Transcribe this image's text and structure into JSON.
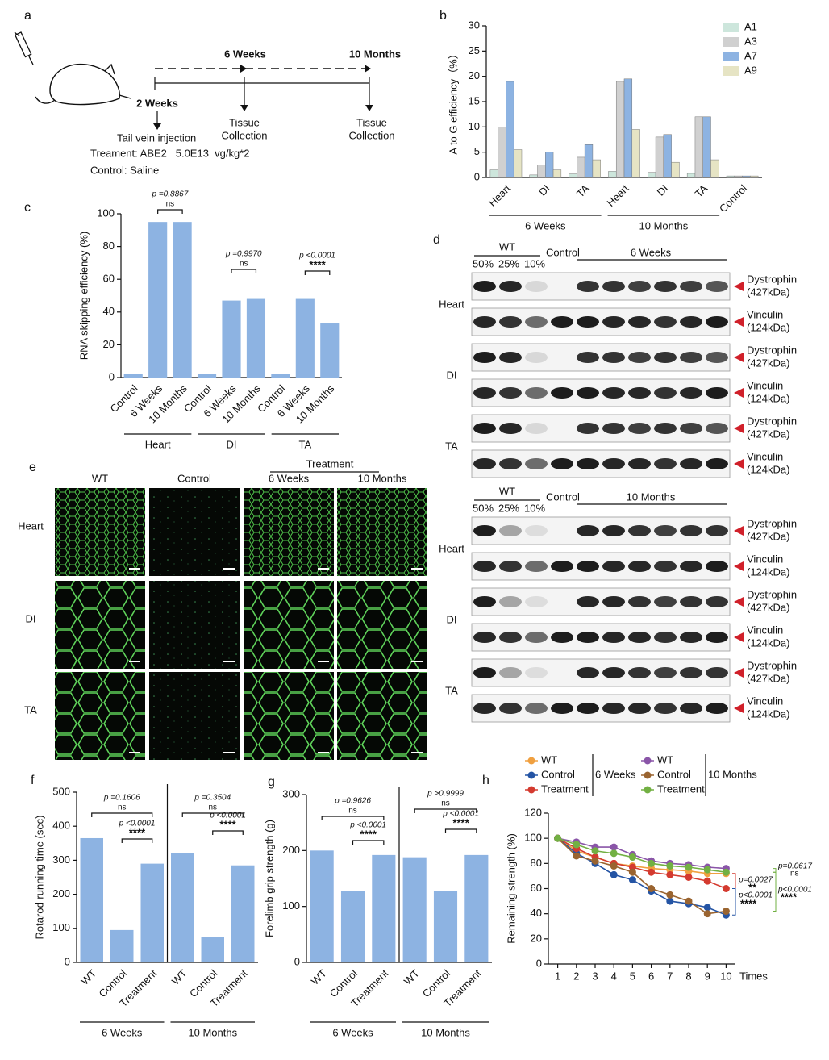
{
  "panel_a": {
    "label": "a",
    "mid_time": "6 Weeks",
    "end_time": "10 Months",
    "start_time": "2 Weeks",
    "injection": "Tail vein injection",
    "treatment": "Treament: ABE2   5.0E13  vg/kg*2",
    "control": "Control: Saline",
    "collection_mid": [
      "Tissue",
      "Collection"
    ],
    "collection_end": [
      "Tissue",
      "Collection"
    ]
  },
  "chart_data": [
    {
      "label": "b",
      "type": "bar",
      "ylabel": "A to G efficiency（%）",
      "categories": [
        "Heart",
        "DI",
        "TA",
        "Heart",
        "DI",
        "TA",
        "Control"
      ],
      "groups": [
        "6 Weeks",
        "10 Months"
      ],
      "series": [
        {
          "name": "A1",
          "color": "#cde6dc",
          "values": [
            1.5,
            0.5,
            0.7,
            1.2,
            1.0,
            0.8,
            0.3
          ]
        },
        {
          "name": "A3",
          "color": "#d0d0d0",
          "values": [
            10,
            2.5,
            4,
            19,
            8,
            12,
            0.3
          ]
        },
        {
          "name": "A7",
          "color": "#8db3e2",
          "values": [
            19,
            5,
            6.5,
            19.5,
            8.5,
            12,
            0.3
          ]
        },
        {
          "name": "A9",
          "color": "#e6e4c4",
          "values": [
            5.5,
            1.5,
            3.5,
            9.5,
            3,
            3.5,
            0.3
          ]
        }
      ],
      "ylim": [
        0,
        30
      ],
      "yticks": [
        0,
        5,
        10,
        15,
        20,
        25,
        30
      ],
      "legend": "top-right"
    },
    {
      "label": "c",
      "type": "bar",
      "ylabel": "RNA skipping efficiency (%)",
      "categories": [
        "Control",
        "6 Weeks",
        "10 Months",
        "Control",
        "6 Weeks",
        "10 Months",
        "Control",
        "6 Weeks",
        "10 Months"
      ],
      "groups": [
        "Heart",
        "DI",
        "TA"
      ],
      "values": [
        2,
        95,
        95,
        2,
        47,
        48,
        2,
        48,
        33
      ],
      "color": "#8db3e2",
      "ylim": [
        0,
        100
      ],
      "yticks": [
        0,
        20,
        40,
        60,
        80,
        100
      ],
      "annotations": [
        {
          "p": "p =0.8867",
          "sig": "ns"
        },
        {
          "p": "p =0.9970",
          "sig": "ns"
        },
        {
          "p": "p <0.0001",
          "sig": "****"
        }
      ]
    },
    {
      "label": "f",
      "type": "bar",
      "ylabel": "Rotarod running time (sec)",
      "categories": [
        "WT",
        "Control",
        "Treatment",
        "WT",
        "Control",
        "Treatment"
      ],
      "groups": [
        "6 Weeks",
        "10 Months"
      ],
      "values": [
        365,
        95,
        290,
        320,
        75,
        285
      ],
      "color": "#8db3e2",
      "ylim": [
        0,
        500
      ],
      "yticks": [
        0,
        100,
        200,
        300,
        400,
        500
      ],
      "annotations": [
        {
          "p": "p =0.1606",
          "sig": "ns"
        },
        {
          "p": "p <0.0001",
          "sig": "****"
        },
        {
          "p": "p =0.3504",
          "sig": "ns"
        },
        {
          "p": "p <0.0001",
          "sig": "****"
        }
      ]
    },
    {
      "label": "g",
      "type": "bar",
      "ylabel": "Forelimb grip strength (g)",
      "categories": [
        "WT",
        "Control",
        "Treatment",
        "WT",
        "Control",
        "Treatment"
      ],
      "groups": [
        "6 Weeks",
        "10 Months"
      ],
      "values": [
        200,
        128,
        192,
        188,
        128,
        192
      ],
      "color": "#8db3e2",
      "ylim": [
        0,
        300
      ],
      "yticks": [
        0,
        100,
        200,
        300
      ],
      "annotations": [
        {
          "p": "p =0.9626",
          "sig": "ns"
        },
        {
          "p": "p <0.0001",
          "sig": "****"
        },
        {
          "p": "p >0.9999",
          "sig": "ns"
        },
        {
          "p": "p <0.0001",
          "sig": "****"
        }
      ]
    },
    {
      "label": "h",
      "type": "line",
      "ylabel": "Remaining strength (%)",
      "xlabel": "Times",
      "x": [
        1,
        2,
        3,
        4,
        5,
        6,
        7,
        8,
        9,
        10
      ],
      "xlim": [
        0.5,
        10.5
      ],
      "xticks": [
        1,
        2,
        3,
        4,
        5,
        6,
        7,
        8,
        9,
        10
      ],
      "ylim": [
        0,
        120
      ],
      "yticks": [
        0,
        20,
        40,
        60,
        80,
        100,
        120
      ],
      "legend_groups": [
        "6 Weeks",
        "10 Months"
      ],
      "series": [
        {
          "name": "WT",
          "color": "#f0a040",
          "values": [
            100,
            90,
            85,
            80,
            78,
            76,
            75,
            74,
            72,
            72
          ]
        },
        {
          "name": "Control",
          "color": "#2454a4",
          "values": [
            100,
            88,
            80,
            71,
            67,
            58,
            50,
            48,
            45,
            39
          ]
        },
        {
          "name": "Treatment",
          "color": "#d43a2f",
          "values": [
            100,
            92,
            85,
            80,
            77,
            73,
            71,
            69,
            66,
            60
          ]
        },
        {
          "name": "WT",
          "color": "#8a55a8",
          "values": [
            100,
            97,
            93,
            93,
            87,
            82,
            80,
            79,
            77,
            76
          ]
        },
        {
          "name": "Control",
          "color": "#9a6430",
          "values": [
            100,
            86,
            82,
            78,
            73,
            60,
            55,
            50,
            40,
            42
          ]
        },
        {
          "name": "Treatment",
          "color": "#72b043",
          "values": [
            100,
            95,
            90,
            88,
            85,
            80,
            78,
            77,
            75,
            73
          ]
        }
      ],
      "annotations": [
        {
          "p": "p=0.0027",
          "sig": "**"
        },
        {
          "p": "p<0.0001",
          "sig": "****"
        },
        {
          "p": "p=0.0617",
          "sig": "ns"
        },
        {
          "p": "p<0.0001",
          "sig": "****"
        }
      ]
    }
  ],
  "panel_d": {
    "label": "d",
    "blocks": [
      {
        "wt": "WT",
        "dilutions": [
          "50%",
          "25%",
          "10%"
        ],
        "control": "Control",
        "timepoint": "6 Weeks",
        "tissues": [
          "Heart",
          "DI",
          "TA"
        ]
      },
      {
        "wt": "WT",
        "dilutions": [
          "50%",
          "25%",
          "10%"
        ],
        "control": "Control",
        "timepoint": "10 Months",
        "tissues": [
          "Heart",
          "DI",
          "TA"
        ]
      }
    ],
    "proteins": [
      {
        "name": "Dystrophin",
        "size": "(427kDa)"
      },
      {
        "name": "Vinculin",
        "size": "(124kDa)"
      }
    ]
  },
  "panel_e": {
    "label": "e",
    "treatment": "Treatment",
    "columns": [
      "WT",
      "Control",
      "6 Weeks",
      "10 Months"
    ],
    "rows": [
      "Heart",
      "DI",
      "TA"
    ]
  }
}
